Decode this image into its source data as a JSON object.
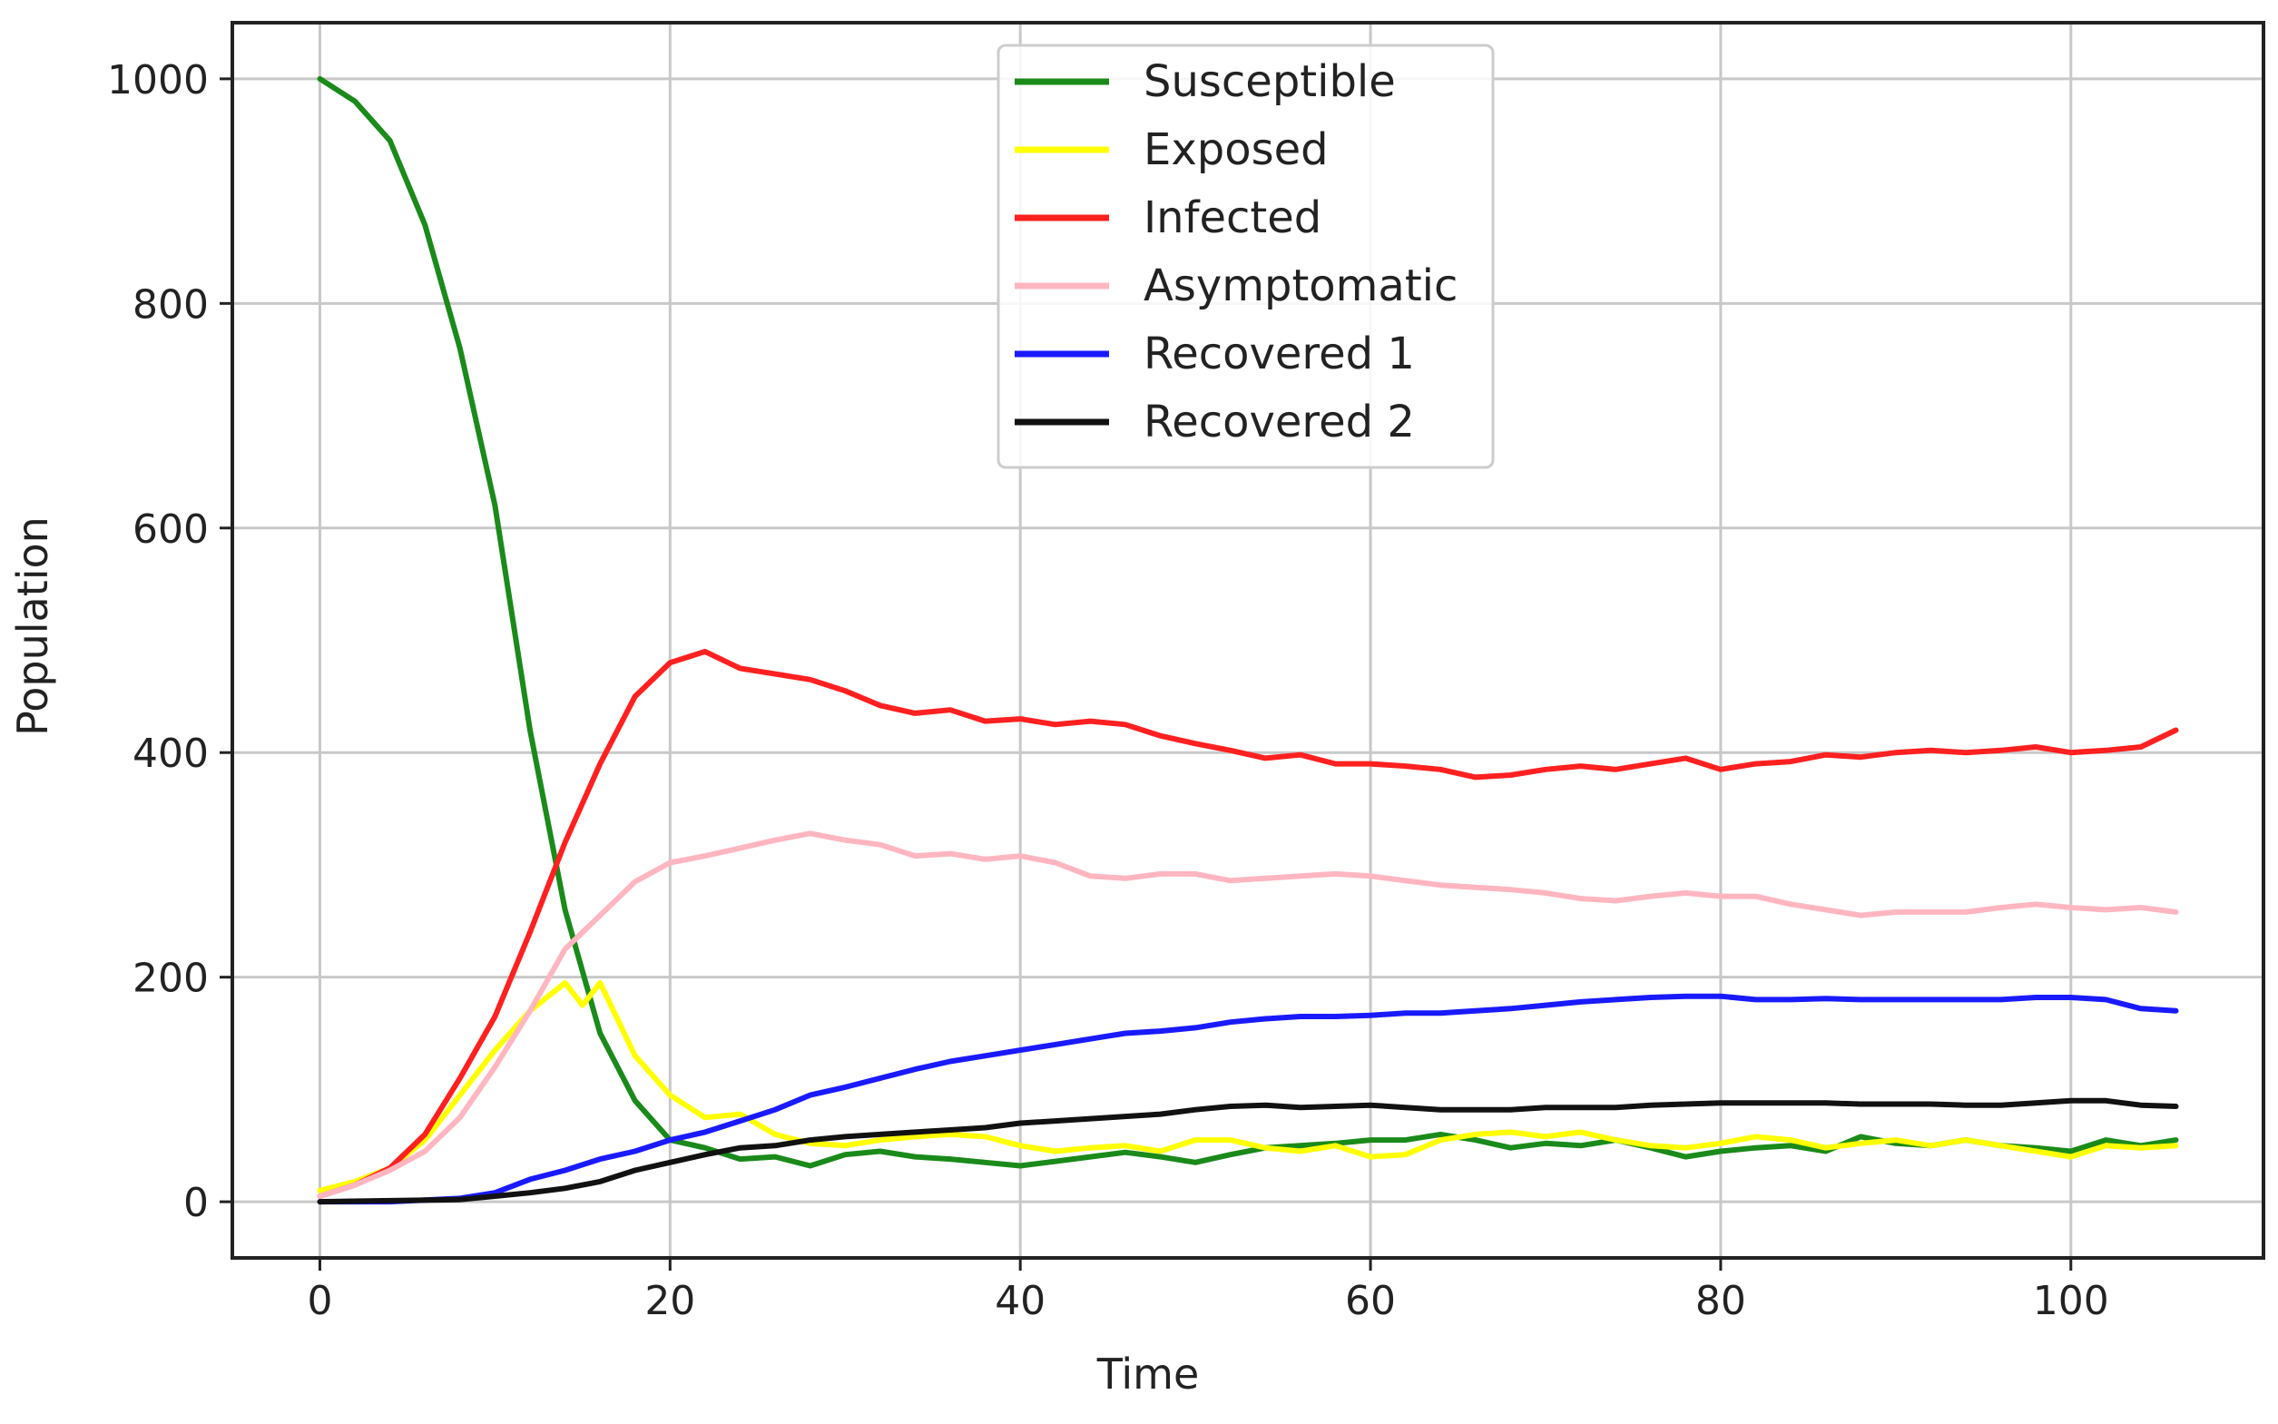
{
  "chart_data": {
    "type": "line",
    "title": "",
    "xlabel": "Time",
    "ylabel": "Population",
    "xlim": [
      -5,
      111
    ],
    "ylim": [
      -50,
      1050
    ],
    "xticks": [
      0,
      20,
      40,
      60,
      80,
      100
    ],
    "yticks": [
      0,
      200,
      400,
      600,
      800,
      1000
    ],
    "grid": true,
    "legend_position": "top-center",
    "series": [
      {
        "name": "Susceptible",
        "color": "#1a8a1a",
        "points": [
          [
            0,
            1000
          ],
          [
            2,
            980
          ],
          [
            4,
            945
          ],
          [
            6,
            870
          ],
          [
            8,
            760
          ],
          [
            10,
            620
          ],
          [
            12,
            420
          ],
          [
            14,
            260
          ],
          [
            16,
            150
          ],
          [
            18,
            90
          ],
          [
            20,
            55
          ],
          [
            22,
            48
          ],
          [
            24,
            38
          ],
          [
            26,
            40
          ],
          [
            28,
            32
          ],
          [
            30,
            42
          ],
          [
            32,
            45
          ],
          [
            34,
            40
          ],
          [
            36,
            38
          ],
          [
            38,
            35
          ],
          [
            40,
            32
          ],
          [
            42,
            36
          ],
          [
            44,
            40
          ],
          [
            46,
            44
          ],
          [
            48,
            40
          ],
          [
            50,
            35
          ],
          [
            52,
            42
          ],
          [
            54,
            48
          ],
          [
            56,
            50
          ],
          [
            58,
            52
          ],
          [
            60,
            55
          ],
          [
            62,
            55
          ],
          [
            64,
            60
          ],
          [
            66,
            55
          ],
          [
            68,
            48
          ],
          [
            70,
            52
          ],
          [
            72,
            50
          ],
          [
            74,
            55
          ],
          [
            76,
            48
          ],
          [
            78,
            40
          ],
          [
            80,
            45
          ],
          [
            82,
            48
          ],
          [
            84,
            50
          ],
          [
            86,
            45
          ],
          [
            88,
            58
          ],
          [
            90,
            52
          ],
          [
            92,
            50
          ],
          [
            94,
            55
          ],
          [
            96,
            50
          ],
          [
            98,
            48
          ],
          [
            100,
            45
          ],
          [
            102,
            55
          ],
          [
            104,
            50
          ],
          [
            106,
            55
          ]
        ]
      },
      {
        "name": "Exposed",
        "color": "#ffff00",
        "points": [
          [
            0,
            10
          ],
          [
            2,
            18
          ],
          [
            4,
            30
          ],
          [
            6,
            55
          ],
          [
            8,
            95
          ],
          [
            10,
            135
          ],
          [
            12,
            170
          ],
          [
            14,
            195
          ],
          [
            15,
            175
          ],
          [
            16,
            195
          ],
          [
            18,
            130
          ],
          [
            20,
            95
          ],
          [
            22,
            75
          ],
          [
            24,
            78
          ],
          [
            26,
            60
          ],
          [
            28,
            52
          ],
          [
            30,
            50
          ],
          [
            32,
            55
          ],
          [
            34,
            58
          ],
          [
            36,
            60
          ],
          [
            38,
            58
          ],
          [
            40,
            50
          ],
          [
            42,
            45
          ],
          [
            44,
            48
          ],
          [
            46,
            50
          ],
          [
            48,
            45
          ],
          [
            50,
            55
          ],
          [
            52,
            55
          ],
          [
            54,
            48
          ],
          [
            56,
            45
          ],
          [
            58,
            50
          ],
          [
            60,
            40
          ],
          [
            62,
            42
          ],
          [
            64,
            55
          ],
          [
            66,
            60
          ],
          [
            68,
            62
          ],
          [
            70,
            58
          ],
          [
            72,
            62
          ],
          [
            74,
            55
          ],
          [
            76,
            50
          ],
          [
            78,
            48
          ],
          [
            80,
            52
          ],
          [
            82,
            58
          ],
          [
            84,
            55
          ],
          [
            86,
            48
          ],
          [
            88,
            52
          ],
          [
            90,
            55
          ],
          [
            92,
            50
          ],
          [
            94,
            55
          ],
          [
            96,
            50
          ],
          [
            98,
            45
          ],
          [
            100,
            40
          ],
          [
            102,
            50
          ],
          [
            104,
            48
          ],
          [
            106,
            50
          ]
        ]
      },
      {
        "name": "Infected",
        "color": "#ff2020",
        "points": [
          [
            0,
            5
          ],
          [
            2,
            15
          ],
          [
            4,
            30
          ],
          [
            6,
            60
          ],
          [
            8,
            110
          ],
          [
            10,
            165
          ],
          [
            12,
            240
          ],
          [
            14,
            320
          ],
          [
            16,
            390
          ],
          [
            18,
            450
          ],
          [
            20,
            480
          ],
          [
            22,
            490
          ],
          [
            24,
            475
          ],
          [
            26,
            470
          ],
          [
            28,
            465
          ],
          [
            30,
            455
          ],
          [
            32,
            442
          ],
          [
            34,
            435
          ],
          [
            36,
            438
          ],
          [
            38,
            428
          ],
          [
            40,
            430
          ],
          [
            42,
            425
          ],
          [
            44,
            428
          ],
          [
            46,
            425
          ],
          [
            48,
            415
          ],
          [
            50,
            408
          ],
          [
            52,
            402
          ],
          [
            54,
            395
          ],
          [
            56,
            398
          ],
          [
            58,
            390
          ],
          [
            60,
            390
          ],
          [
            62,
            388
          ],
          [
            64,
            385
          ],
          [
            66,
            378
          ],
          [
            68,
            380
          ],
          [
            70,
            385
          ],
          [
            72,
            388
          ],
          [
            74,
            385
          ],
          [
            76,
            390
          ],
          [
            78,
            395
          ],
          [
            80,
            385
          ],
          [
            82,
            390
          ],
          [
            84,
            392
          ],
          [
            86,
            398
          ],
          [
            88,
            396
          ],
          [
            90,
            400
          ],
          [
            92,
            402
          ],
          [
            94,
            400
          ],
          [
            96,
            402
          ],
          [
            98,
            405
          ],
          [
            100,
            400
          ],
          [
            102,
            402
          ],
          [
            104,
            405
          ],
          [
            106,
            420
          ]
        ]
      },
      {
        "name": "Asymptomatic",
        "color": "#ffb6c1",
        "points": [
          [
            0,
            5
          ],
          [
            2,
            15
          ],
          [
            4,
            28
          ],
          [
            6,
            45
          ],
          [
            8,
            75
          ],
          [
            10,
            120
          ],
          [
            12,
            170
          ],
          [
            14,
            225
          ],
          [
            16,
            255
          ],
          [
            18,
            285
          ],
          [
            20,
            302
          ],
          [
            22,
            308
          ],
          [
            24,
            315
          ],
          [
            26,
            322
          ],
          [
            28,
            328
          ],
          [
            30,
            322
          ],
          [
            32,
            318
          ],
          [
            34,
            308
          ],
          [
            36,
            310
          ],
          [
            38,
            305
          ],
          [
            40,
            308
          ],
          [
            42,
            302
          ],
          [
            44,
            290
          ],
          [
            46,
            288
          ],
          [
            48,
            292
          ],
          [
            50,
            292
          ],
          [
            52,
            286
          ],
          [
            54,
            288
          ],
          [
            56,
            290
          ],
          [
            58,
            292
          ],
          [
            60,
            290
          ],
          [
            62,
            286
          ],
          [
            64,
            282
          ],
          [
            66,
            280
          ],
          [
            68,
            278
          ],
          [
            70,
            275
          ],
          [
            72,
            270
          ],
          [
            74,
            268
          ],
          [
            76,
            272
          ],
          [
            78,
            275
          ],
          [
            80,
            272
          ],
          [
            82,
            272
          ],
          [
            84,
            265
          ],
          [
            86,
            260
          ],
          [
            88,
            255
          ],
          [
            90,
            258
          ],
          [
            92,
            258
          ],
          [
            94,
            258
          ],
          [
            96,
            262
          ],
          [
            98,
            265
          ],
          [
            100,
            262
          ],
          [
            102,
            260
          ],
          [
            104,
            262
          ],
          [
            106,
            258
          ]
        ]
      },
      {
        "name": "Recovered  1",
        "color": "#1a1aff",
        "points": [
          [
            0,
            0
          ],
          [
            4,
            0
          ],
          [
            8,
            3
          ],
          [
            10,
            8
          ],
          [
            12,
            20
          ],
          [
            14,
            28
          ],
          [
            16,
            38
          ],
          [
            18,
            45
          ],
          [
            20,
            55
          ],
          [
            22,
            62
          ],
          [
            24,
            72
          ],
          [
            26,
            82
          ],
          [
            28,
            95
          ],
          [
            30,
            102
          ],
          [
            32,
            110
          ],
          [
            34,
            118
          ],
          [
            36,
            125
          ],
          [
            38,
            130
          ],
          [
            40,
            135
          ],
          [
            42,
            140
          ],
          [
            44,
            145
          ],
          [
            46,
            150
          ],
          [
            48,
            152
          ],
          [
            50,
            155
          ],
          [
            52,
            160
          ],
          [
            54,
            163
          ],
          [
            56,
            165
          ],
          [
            58,
            165
          ],
          [
            60,
            166
          ],
          [
            62,
            168
          ],
          [
            64,
            168
          ],
          [
            66,
            170
          ],
          [
            68,
            172
          ],
          [
            70,
            175
          ],
          [
            72,
            178
          ],
          [
            74,
            180
          ],
          [
            76,
            182
          ],
          [
            78,
            183
          ],
          [
            80,
            183
          ],
          [
            82,
            180
          ],
          [
            84,
            180
          ],
          [
            86,
            181
          ],
          [
            88,
            180
          ],
          [
            90,
            180
          ],
          [
            92,
            180
          ],
          [
            94,
            180
          ],
          [
            96,
            180
          ],
          [
            98,
            182
          ],
          [
            100,
            182
          ],
          [
            102,
            180
          ],
          [
            104,
            172
          ],
          [
            106,
            170
          ]
        ]
      },
      {
        "name": "Recovered 2",
        "color": "#111111",
        "points": [
          [
            0,
            0
          ],
          [
            8,
            2
          ],
          [
            10,
            5
          ],
          [
            12,
            8
          ],
          [
            14,
            12
          ],
          [
            16,
            18
          ],
          [
            18,
            28
          ],
          [
            20,
            35
          ],
          [
            22,
            42
          ],
          [
            24,
            48
          ],
          [
            26,
            50
          ],
          [
            28,
            55
          ],
          [
            30,
            58
          ],
          [
            32,
            60
          ],
          [
            34,
            62
          ],
          [
            36,
            64
          ],
          [
            38,
            66
          ],
          [
            40,
            70
          ],
          [
            42,
            72
          ],
          [
            44,
            74
          ],
          [
            46,
            76
          ],
          [
            48,
            78
          ],
          [
            50,
            82
          ],
          [
            52,
            85
          ],
          [
            54,
            86
          ],
          [
            56,
            84
          ],
          [
            58,
            85
          ],
          [
            60,
            86
          ],
          [
            62,
            84
          ],
          [
            64,
            82
          ],
          [
            66,
            82
          ],
          [
            68,
            82
          ],
          [
            70,
            84
          ],
          [
            72,
            84
          ],
          [
            74,
            84
          ],
          [
            76,
            86
          ],
          [
            78,
            87
          ],
          [
            80,
            88
          ],
          [
            82,
            88
          ],
          [
            84,
            88
          ],
          [
            86,
            88
          ],
          [
            88,
            87
          ],
          [
            90,
            87
          ],
          [
            92,
            87
          ],
          [
            94,
            86
          ],
          [
            96,
            86
          ],
          [
            98,
            88
          ],
          [
            100,
            90
          ],
          [
            102,
            90
          ],
          [
            104,
            86
          ],
          [
            106,
            85
          ]
        ]
      }
    ]
  }
}
